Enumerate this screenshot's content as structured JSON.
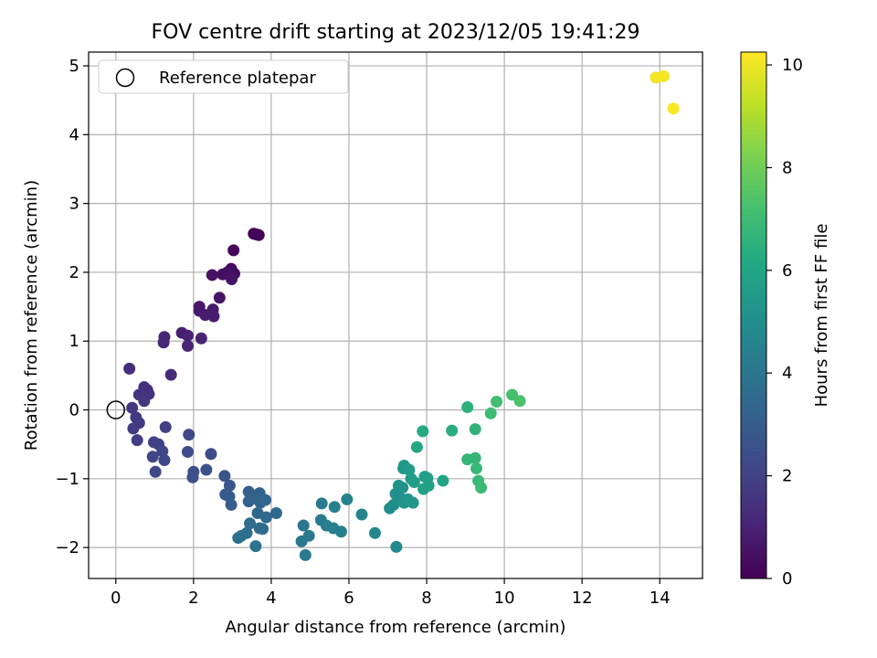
{
  "chart_data": {
    "type": "scatter",
    "title": "FOV centre drift starting at 2023/12/05 19:41:29",
    "xlabel": "Angular distance from reference (arcmin)",
    "ylabel": "Rotation from reference (arcmin)",
    "xlim": [
      -0.7,
      15.1
    ],
    "ylim": [
      -2.45,
      5.2
    ],
    "xticks": [
      0,
      2,
      4,
      6,
      8,
      10,
      12,
      14
    ],
    "yticks": [
      -2,
      -1,
      0,
      1,
      2,
      3,
      4,
      5
    ],
    "grid": true,
    "legend": {
      "position": "top-left",
      "entries": [
        "Reference platepar"
      ]
    },
    "reference_point": {
      "x": 0,
      "y": 0,
      "label": "Reference platepar"
    },
    "colorbar": {
      "label": "Hours from first FF file",
      "range": [
        0,
        10.25
      ],
      "ticks": [
        0,
        2,
        4,
        6,
        8,
        10
      ],
      "colormap": "viridis"
    },
    "points": [
      {
        "x": 3.55,
        "y": 2.56,
        "t": 0.05
      },
      {
        "x": 3.62,
        "y": 2.55,
        "t": 0.08
      },
      {
        "x": 3.68,
        "y": 2.54,
        "t": 0.1
      },
      {
        "x": 3.03,
        "y": 2.32,
        "t": 0.2
      },
      {
        "x": 2.97,
        "y": 2.05,
        "t": 0.3
      },
      {
        "x": 3.05,
        "y": 1.98,
        "t": 0.35
      },
      {
        "x": 2.87,
        "y": 2.0,
        "t": 0.4
      },
      {
        "x": 2.75,
        "y": 1.97,
        "t": 0.45
      },
      {
        "x": 2.48,
        "y": 1.96,
        "t": 0.5
      },
      {
        "x": 2.98,
        "y": 1.9,
        "t": 0.55
      },
      {
        "x": 2.67,
        "y": 1.63,
        "t": 0.6
      },
      {
        "x": 2.15,
        "y": 1.5,
        "t": 0.65
      },
      {
        "x": 2.15,
        "y": 1.44,
        "t": 0.7
      },
      {
        "x": 2.5,
        "y": 1.46,
        "t": 0.75
      },
      {
        "x": 2.3,
        "y": 1.38,
        "t": 0.8
      },
      {
        "x": 2.52,
        "y": 1.36,
        "t": 0.85
      },
      {
        "x": 1.7,
        "y": 1.12,
        "t": 0.9
      },
      {
        "x": 1.85,
        "y": 1.08,
        "t": 0.95
      },
      {
        "x": 2.2,
        "y": 1.04,
        "t": 1.0
      },
      {
        "x": 1.85,
        "y": 0.93,
        "t": 1.05
      },
      {
        "x": 1.25,
        "y": 1.06,
        "t": 1.1
      },
      {
        "x": 1.23,
        "y": 0.98,
        "t": 1.15
      },
      {
        "x": 1.42,
        "y": 0.51,
        "t": 1.25
      },
      {
        "x": 0.35,
        "y": 0.6,
        "t": 1.35
      },
      {
        "x": 0.73,
        "y": 0.33,
        "t": 1.4
      },
      {
        "x": 0.81,
        "y": 0.29,
        "t": 1.45
      },
      {
        "x": 0.85,
        "y": 0.23,
        "t": 1.5
      },
      {
        "x": 0.6,
        "y": 0.22,
        "t": 1.55
      },
      {
        "x": 0.73,
        "y": 0.13,
        "t": 1.6
      },
      {
        "x": 0.42,
        "y": 0.03,
        "t": 1.65
      },
      {
        "x": 0.52,
        "y": -0.11,
        "t": 1.7
      },
      {
        "x": 0.6,
        "y": -0.19,
        "t": 1.75
      },
      {
        "x": 0.45,
        "y": -0.27,
        "t": 1.8
      },
      {
        "x": 0.55,
        "y": -0.44,
        "t": 1.85
      },
      {
        "x": 1.28,
        "y": -0.25,
        "t": 1.9
      },
      {
        "x": 0.98,
        "y": -0.47,
        "t": 1.95
      },
      {
        "x": 1.1,
        "y": -0.5,
        "t": 2.0
      },
      {
        "x": 1.2,
        "y": -0.6,
        "t": 2.05
      },
      {
        "x": 0.95,
        "y": -0.68,
        "t": 2.1
      },
      {
        "x": 1.25,
        "y": -0.73,
        "t": 2.15
      },
      {
        "x": 1.02,
        "y": -0.9,
        "t": 2.2
      },
      {
        "x": 1.88,
        "y": -0.36,
        "t": 2.25
      },
      {
        "x": 1.85,
        "y": -0.61,
        "t": 2.3
      },
      {
        "x": 2.45,
        "y": -0.64,
        "t": 2.35
      },
      {
        "x": 2.0,
        "y": -0.9,
        "t": 2.45
      },
      {
        "x": 1.98,
        "y": -0.98,
        "t": 2.5
      },
      {
        "x": 2.33,
        "y": -0.87,
        "t": 2.55
      },
      {
        "x": 2.8,
        "y": -0.96,
        "t": 2.65
      },
      {
        "x": 2.93,
        "y": -1.1,
        "t": 2.75
      },
      {
        "x": 2.82,
        "y": -1.23,
        "t": 2.85
      },
      {
        "x": 2.92,
        "y": -1.26,
        "t": 2.9
      },
      {
        "x": 2.97,
        "y": -1.38,
        "t": 3.0
      },
      {
        "x": 3.42,
        "y": -1.19,
        "t": 3.1
      },
      {
        "x": 3.42,
        "y": -1.33,
        "t": 3.15
      },
      {
        "x": 3.55,
        "y": -1.28,
        "t": 3.2
      },
      {
        "x": 3.7,
        "y": -1.21,
        "t": 3.25
      },
      {
        "x": 3.72,
        "y": -1.35,
        "t": 3.3
      },
      {
        "x": 3.85,
        "y": -1.31,
        "t": 3.35
      },
      {
        "x": 3.65,
        "y": -1.5,
        "t": 3.4
      },
      {
        "x": 3.87,
        "y": -1.56,
        "t": 3.45
      },
      {
        "x": 4.13,
        "y": -1.5,
        "t": 3.5
      },
      {
        "x": 3.45,
        "y": -1.65,
        "t": 3.55
      },
      {
        "x": 3.7,
        "y": -1.72,
        "t": 3.6
      },
      {
        "x": 3.78,
        "y": -1.73,
        "t": 3.65
      },
      {
        "x": 3.37,
        "y": -1.79,
        "t": 3.7
      },
      {
        "x": 3.15,
        "y": -1.86,
        "t": 3.75
      },
      {
        "x": 3.23,
        "y": -1.83,
        "t": 3.8
      },
      {
        "x": 3.6,
        "y": -1.98,
        "t": 3.85
      },
      {
        "x": 4.83,
        "y": -1.68,
        "t": 4.0
      },
      {
        "x": 4.78,
        "y": -1.91,
        "t": 4.05
      },
      {
        "x": 4.97,
        "y": -1.83,
        "t": 4.1
      },
      {
        "x": 4.88,
        "y": -2.11,
        "t": 4.15
      },
      {
        "x": 5.3,
        "y": -1.36,
        "t": 4.2
      },
      {
        "x": 5.28,
        "y": -1.6,
        "t": 4.25
      },
      {
        "x": 5.42,
        "y": -1.68,
        "t": 4.3
      },
      {
        "x": 5.6,
        "y": -1.72,
        "t": 4.35
      },
      {
        "x": 5.8,
        "y": -1.77,
        "t": 4.4
      },
      {
        "x": 5.63,
        "y": -1.41,
        "t": 4.45
      },
      {
        "x": 5.95,
        "y": -1.3,
        "t": 4.5
      },
      {
        "x": 6.33,
        "y": -1.52,
        "t": 4.6
      },
      {
        "x": 6.67,
        "y": -1.79,
        "t": 4.7
      },
      {
        "x": 7.22,
        "y": -1.99,
        "t": 4.8
      },
      {
        "x": 7.05,
        "y": -1.43,
        "t": 4.95
      },
      {
        "x": 7.15,
        "y": -1.38,
        "t": 5.0
      },
      {
        "x": 7.2,
        "y": -1.22,
        "t": 5.05
      },
      {
        "x": 7.3,
        "y": -1.27,
        "t": 5.1
      },
      {
        "x": 7.28,
        "y": -1.1,
        "t": 5.15
      },
      {
        "x": 7.38,
        "y": -1.13,
        "t": 5.2
      },
      {
        "x": 7.42,
        "y": -1.35,
        "t": 5.3
      },
      {
        "x": 7.52,
        "y": -1.3,
        "t": 5.35
      },
      {
        "x": 7.65,
        "y": -1.35,
        "t": 5.4
      },
      {
        "x": 7.4,
        "y": -0.85,
        "t": 5.45
      },
      {
        "x": 7.42,
        "y": -0.81,
        "t": 5.5
      },
      {
        "x": 7.55,
        "y": -0.87,
        "t": 5.55
      },
      {
        "x": 7.6,
        "y": -1.0,
        "t": 5.6
      },
      {
        "x": 7.68,
        "y": -1.05,
        "t": 5.65
      },
      {
        "x": 7.95,
        "y": -0.97,
        "t": 5.7
      },
      {
        "x": 8.02,
        "y": -0.99,
        "t": 5.75
      },
      {
        "x": 7.92,
        "y": -1.15,
        "t": 5.8
      },
      {
        "x": 8.05,
        "y": -1.1,
        "t": 5.85
      },
      {
        "x": 8.42,
        "y": -1.03,
        "t": 5.95
      },
      {
        "x": 7.75,
        "y": -0.54,
        "t": 6.1
      },
      {
        "x": 7.9,
        "y": -0.31,
        "t": 6.2
      },
      {
        "x": 8.65,
        "y": -0.3,
        "t": 6.4
      },
      {
        "x": 9.05,
        "y": 0.04,
        "t": 6.5
      },
      {
        "x": 9.25,
        "y": -0.28,
        "t": 6.6
      },
      {
        "x": 9.05,
        "y": -0.72,
        "t": 6.7
      },
      {
        "x": 9.25,
        "y": -0.7,
        "t": 6.75
      },
      {
        "x": 9.28,
        "y": -0.85,
        "t": 6.8
      },
      {
        "x": 9.33,
        "y": -1.03,
        "t": 6.85
      },
      {
        "x": 9.4,
        "y": -1.13,
        "t": 6.9
      },
      {
        "x": 9.65,
        "y": -0.05,
        "t": 7.0
      },
      {
        "x": 9.8,
        "y": 0.12,
        "t": 7.1
      },
      {
        "x": 10.2,
        "y": 0.22,
        "t": 7.2
      },
      {
        "x": 10.4,
        "y": 0.13,
        "t": 7.3
      },
      {
        "x": 13.9,
        "y": 4.83,
        "t": 10.05
      },
      {
        "x": 14.1,
        "y": 4.85,
        "t": 10.1
      },
      {
        "x": 14.35,
        "y": 4.38,
        "t": 10.2
      }
    ]
  }
}
